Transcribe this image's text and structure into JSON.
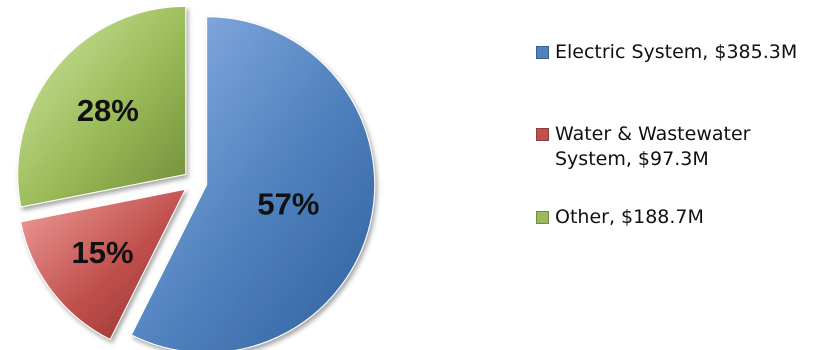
{
  "chart_data": {
    "type": "pie",
    "title": "",
    "slices": [
      {
        "label": "Electric System, $385.3M",
        "value": 385.3,
        "percent_label": "57%",
        "color": "#4f81bd"
      },
      {
        "label": "Water & Wastewater System, $97.3M",
        "value": 97.3,
        "percent_label": "15%",
        "color": "#c0504d"
      },
      {
        "label": "Other, $188.7M",
        "value": 188.7,
        "percent_label": "28%",
        "color": "#9bbb59"
      }
    ],
    "legend_position": "right",
    "exploded": true
  }
}
